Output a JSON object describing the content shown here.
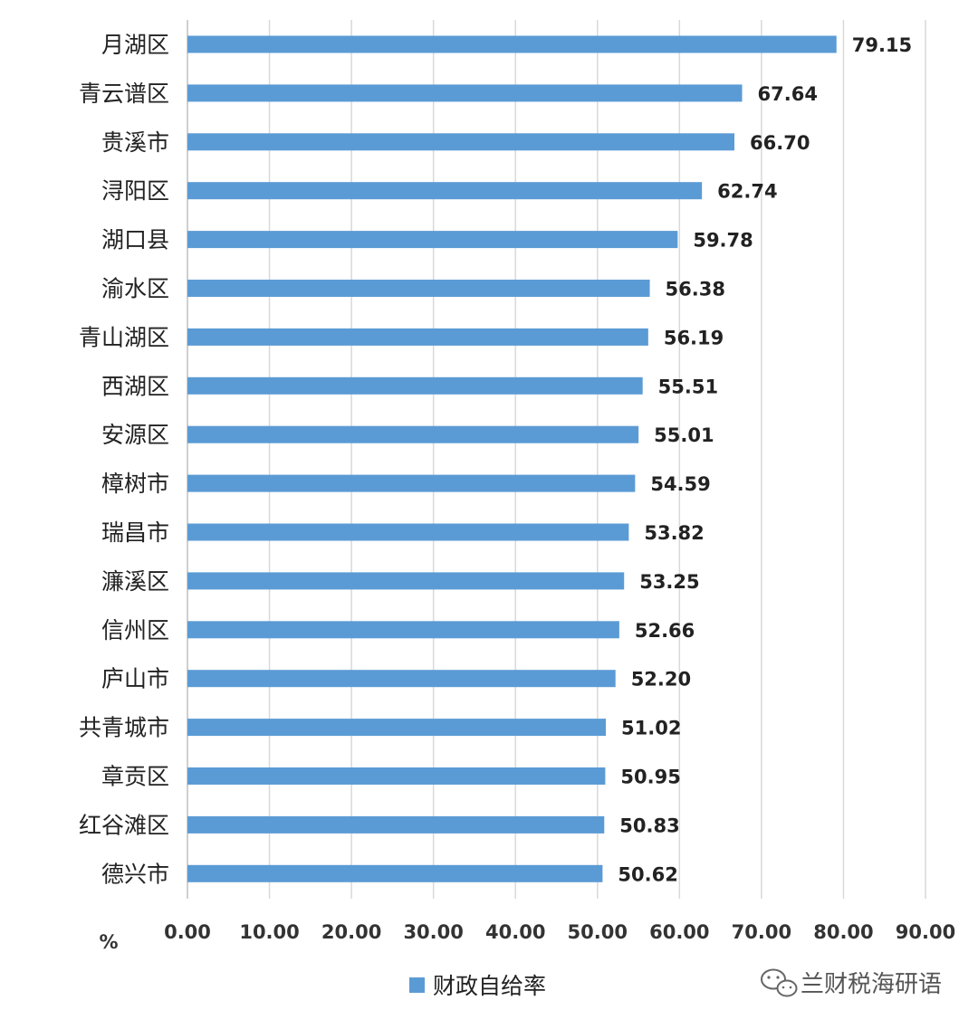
{
  "chart_data": {
    "type": "bar",
    "orientation": "horizontal",
    "categories": [
      "月湖区",
      "青云谱区",
      "贵溪市",
      "浔阳区",
      "湖口县",
      "渝水区",
      "青山湖区",
      "西湖区",
      "安源区",
      "樟树市",
      "瑞昌市",
      "濂溪区",
      "信州区",
      "庐山市",
      "共青城市",
      "章贡区",
      "红谷滩区",
      "德兴市"
    ],
    "series": [
      {
        "name": "财政自给率",
        "values": [
          79.15,
          67.64,
          66.7,
          62.74,
          59.78,
          56.38,
          56.19,
          55.51,
          55.01,
          54.59,
          53.82,
          53.25,
          52.66,
          52.2,
          51.02,
          50.95,
          50.83,
          50.62
        ],
        "color": "#5b9bd5"
      }
    ],
    "value_labels": [
      "79.15",
      "67.64",
      "66.70",
      "62.74",
      "59.78",
      "56.38",
      "56.19",
      "55.51",
      "55.01",
      "54.59",
      "53.82",
      "53.25",
      "52.66",
      "52.20",
      "51.02",
      "50.95",
      "50.83",
      "50.62"
    ],
    "x_ticks": [
      "0.00",
      "10.00",
      "20.00",
      "30.00",
      "40.00",
      "50.00",
      "60.00",
      "70.00",
      "80.00",
      "90.00"
    ],
    "xlim": [
      0,
      90
    ],
    "xlabel": "%",
    "grid": true,
    "legend_position": "bottom"
  },
  "watermark": {
    "text": "兰财税海研语",
    "icon": "wechat-icon"
  },
  "colors": {
    "bar": "#5b9bd5",
    "grid": "#d9d9d9",
    "axis": "#bfbfbf"
  }
}
